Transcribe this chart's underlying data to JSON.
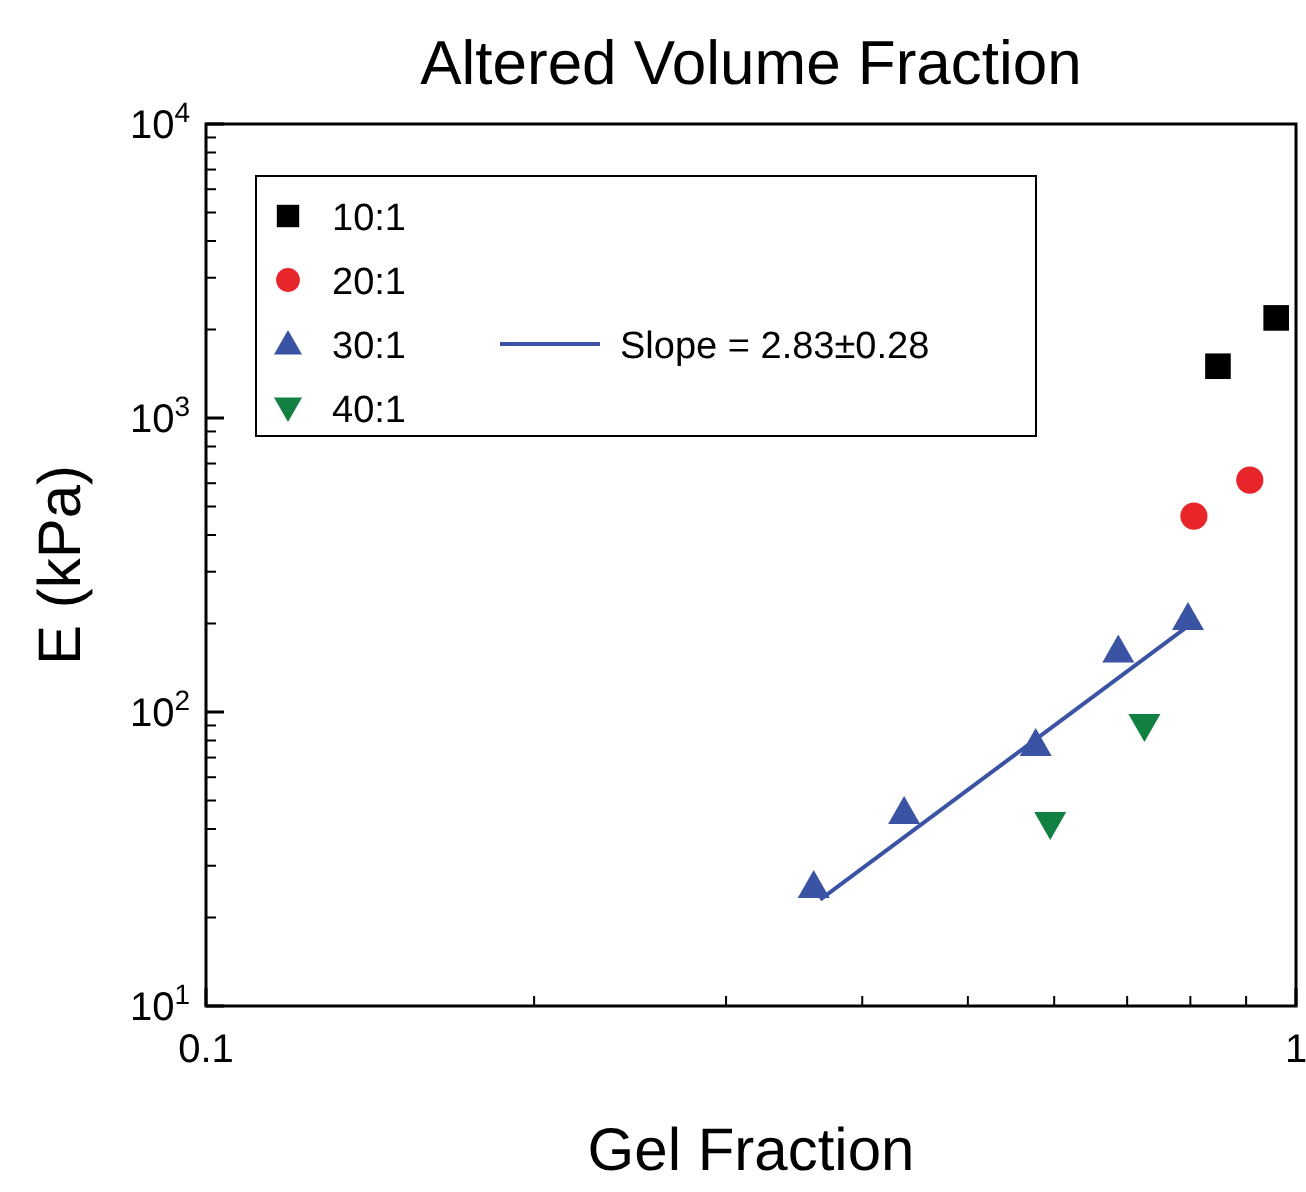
{
  "chart_data": {
    "type": "scatter",
    "title": "Altered Volume Fraction",
    "xlabel": "Gel Fraction",
    "ylabel": "E (kPa)",
    "log": "xy",
    "grid": false,
    "legend": "top left",
    "xlim": [
      0.1,
      1
    ],
    "xticks": [
      0.1,
      1
    ],
    "ylim": [
      10,
      10000
    ],
    "yticks": [
      {
        "value": 10,
        "label": "10$^{1}$"
      },
      {
        "value": 100,
        "label": "10$^{2}$"
      },
      {
        "value": 1000,
        "label": "10$^{3}$"
      },
      {
        "value": 10000,
        "label": "10$^{4}$"
      }
    ],
    "series": [
      {
        "name": "10:1",
        "color": "#000000",
        "marker": "square",
        "x": [
          0.848,
          0.959
        ],
        "values": [
          1500,
          2190
        ]
      },
      {
        "name": "20:1",
        "color": "#e8262a",
        "marker": "circle",
        "x": [
          0.806,
          0.907
        ],
        "values": [
          464,
          615
        ]
      },
      {
        "name": "30:1",
        "color": "#3a53a4",
        "marker": "triangle",
        "x": [
          0.361,
          0.437,
          0.577,
          0.687,
          0.796
        ],
        "values": [
          25.6,
          45.7,
          77.8,
          162,
          209
        ]
      },
      {
        "name": "40:1",
        "color": "#138043",
        "marker": "triangle-down",
        "x": [
          0.595,
          0.726
        ],
        "values": [
          41.6,
          89.6
        ]
      },
      {
        "name": "Slope = 2.83±0.28",
        "type": "line",
        "color": "#3a53a4",
        "line_style": "solid",
        "x": [
          0.366,
          0.796
        ],
        "values": [
          23,
          196
        ]
      }
    ]
  }
}
